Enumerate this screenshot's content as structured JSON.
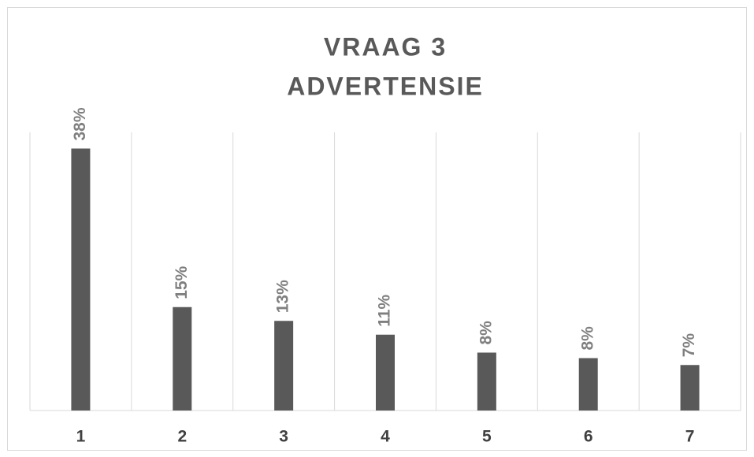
{
  "chart_data": {
    "type": "bar",
    "title": [
      "VRAAG 3",
      "ADVERTENSIE"
    ],
    "categories": [
      "1",
      "2",
      "3",
      "4",
      "5",
      "6",
      "7"
    ],
    "values": [
      38,
      15,
      13,
      11,
      8.4,
      7.6,
      6.6
    ],
    "value_labels": [
      "38%",
      "15%",
      "13%",
      "11%",
      "8%",
      "8%",
      "7%"
    ],
    "color": "#595959",
    "ylim": [
      0,
      40
    ]
  }
}
